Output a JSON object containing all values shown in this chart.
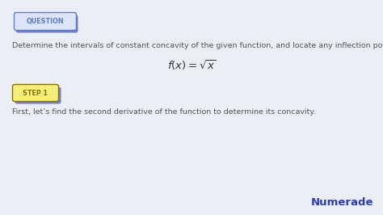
{
  "background_color": "#eceef5",
  "question_label": "QUESTION",
  "question_label_color": "#5b7dd4",
  "question_box_fill": "#dde4f7",
  "question_box_border": "#5b7dd4",
  "body_text_line1": "Determine the intervals of constant concavity of the given function, and locate any inflection points.",
  "body_text_color": "#555555",
  "formula": "$f(x) = \\sqrt{x}$",
  "formula_color": "#333333",
  "step_label": "STEP 1",
  "step_label_color": "#8a7200",
  "step_box_fill": "#f5ee7a",
  "step_box_border": "#8a7200",
  "step_shadow_color": "#7080d0",
  "step_text": "First, let’s find the second derivative of the function to determine its concavity.",
  "step_text_color": "#555555",
  "numerade_text": "Numerade",
  "numerade_color": "#2d3bbf",
  "font_size_body": 6.8,
  "font_size_formula": 9.5,
  "font_size_label": 5.8,
  "font_size_numerade": 9.5,
  "fig_width": 4.74,
  "fig_height": 2.66,
  "dpi": 100
}
